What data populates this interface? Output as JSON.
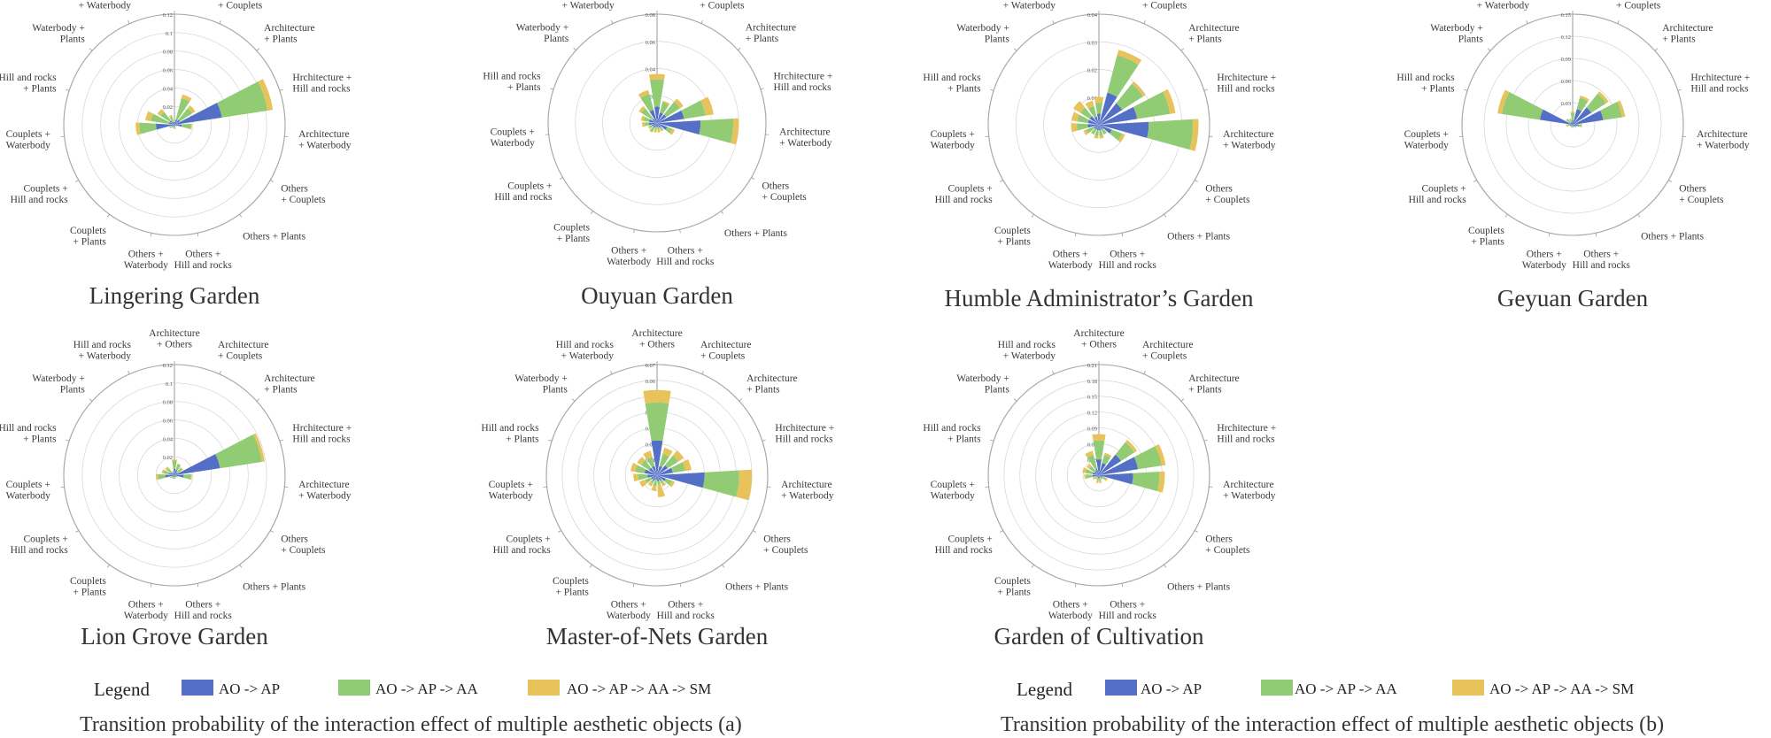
{
  "categories": [
    "Architecture + Others",
    "Architecture + Couplets",
    "Architecture + Plants",
    "Hrchitecture + Hill and rocks",
    "Architecture + Waterbody",
    "Others + Couplets",
    "Others + Plants",
    "Others + Hill and rocks",
    "Others + Waterbody",
    "Couplets + Plants",
    "Couplets + Hill and rocks",
    "Couplets + Waterbody",
    "Hill and rocks + Plants",
    "Waterbody + Plants",
    "Hill and rocks + Waterbody"
  ],
  "category_lines": [
    [
      "Architecture",
      "+ Others"
    ],
    [
      "Architecture",
      "+ Couplets"
    ],
    [
      "Architecture",
      "+ Plants"
    ],
    [
      "Hrchitecture +",
      "Hill and rocks"
    ],
    [
      "Architecture",
      "+ Waterbody"
    ],
    [
      "Others",
      "+ Couplets"
    ],
    [
      "Others + Plants"
    ],
    [
      "Others +",
      "Hill and rocks"
    ],
    [
      "Others +",
      "Waterbody"
    ],
    [
      "Couplets",
      "+ Plants"
    ],
    [
      "Couplets +",
      "Hill and rocks"
    ],
    [
      "Couplets +",
      "Waterbody"
    ],
    [
      "Hill and rocks",
      "+ Plants"
    ],
    [
      "Waterbody +",
      "Plants"
    ],
    [
      "Hill and rocks",
      "+ Waterbody"
    ]
  ],
  "colors": {
    "AO -> AP": "#5470c6",
    "AO -> AP -> AA": "#91cc75",
    "AO -> AP -> AA -> SM": "#e8c25a",
    "grid": "#d4d4d4",
    "axis": "#999999",
    "text": "#333333"
  },
  "chart_data": [
    {
      "type": "polar-bar-stacked",
      "title": "Lingering Garden",
      "rmax": 0.12,
      "ticks": [
        "0.02",
        "0.04",
        "0.06",
        "0.08",
        "0.1",
        "0.12"
      ],
      "series": [
        {
          "name": "AO -> AP",
          "values": [
            0.003,
            0.006,
            0.007,
            0.052,
            0.008,
            0.002,
            0.001,
            0.002,
            0.002,
            0.002,
            0.003,
            0.02,
            0.006,
            0.006,
            0.003
          ]
        },
        {
          "name": "AO -> AP -> AA",
          "values": [
            0.002,
            0.024,
            0.016,
            0.05,
            0.01,
            0.001,
            0.001,
            0.002,
            0.002,
            0.002,
            0.003,
            0.018,
            0.02,
            0.012,
            0.006
          ]
        },
        {
          "name": "AO -> AP -> AA -> SM",
          "values": [
            0.001,
            0.004,
            0.004,
            0.006,
            0.001,
            0,
            0,
            0.001,
            0,
            0,
            0,
            0.004,
            0.006,
            0.004,
            0.002
          ]
        }
      ]
    },
    {
      "type": "polar-bar-stacked",
      "title": "Ouyuan Garden",
      "rmax": 0.08,
      "ticks": [
        "0.02",
        "0.04",
        "0.06",
        "0.08"
      ],
      "series": [
        {
          "name": "AO -> AP",
          "values": [
            0.012,
            0.008,
            0.008,
            0.02,
            0.032,
            0.008,
            0.004,
            0.003,
            0.003,
            0.004,
            0.004,
            0.006,
            0.006,
            0.004,
            0.01
          ]
        },
        {
          "name": "AO -> AP -> AA",
          "values": [
            0.02,
            0.008,
            0.012,
            0.016,
            0.024,
            0.004,
            0.002,
            0.002,
            0.002,
            0.003,
            0.002,
            0.003,
            0.004,
            0.01,
            0.012
          ]
        },
        {
          "name": "AO -> AP -> AA -> SM",
          "values": [
            0.004,
            0.001,
            0.003,
            0.006,
            0.004,
            0.002,
            0.001,
            0.002,
            0.002,
            0.001,
            0.001,
            0.002,
            0.002,
            0.002,
            0.003
          ]
        }
      ]
    },
    {
      "type": "polar-bar-stacked",
      "title": "Humble Administrator’s Garden",
      "rmax": 0.04,
      "ticks": [
        "0.01",
        "0.02",
        "0.03",
        "0.04"
      ],
      "series": [
        {
          "name": "AO -> AP",
          "values": [
            0.004,
            0.012,
            0.01,
            0.014,
            0.018,
            0.005,
            0.002,
            0.002,
            0.002,
            0.002,
            0.002,
            0.004,
            0.004,
            0.004,
            0.003
          ]
        },
        {
          "name": "AO -> AP -> AA",
          "values": [
            0.004,
            0.014,
            0.009,
            0.012,
            0.016,
            0.004,
            0.002,
            0.002,
            0.002,
            0.002,
            0.003,
            0.004,
            0.004,
            0.004,
            0.004
          ]
        },
        {
          "name": "AO -> AP -> AA -> SM",
          "values": [
            0.002,
            0.002,
            0.001,
            0.002,
            0.002,
            0.001,
            0,
            0.001,
            0.001,
            0,
            0.001,
            0.002,
            0.002,
            0.003,
            0.002
          ]
        }
      ]
    },
    {
      "type": "polar-bar-stacked",
      "title": "Geyuan Garden",
      "rmax": 0.15,
      "ticks": [
        "0.03",
        "0.06",
        "0.09",
        "0.12",
        "0.15"
      ],
      "series": [
        {
          "name": "AO -> AP",
          "values": [
            0.006,
            0.022,
            0.03,
            0.042,
            0.008,
            0.004,
            0.002,
            0.002,
            0.002,
            0.002,
            0.002,
            0.004,
            0.045,
            0.004,
            0.004
          ]
        },
        {
          "name": "AO -> AP -> AA",
          "values": [
            0.01,
            0.016,
            0.024,
            0.026,
            0.004,
            0.002,
            0.002,
            0.002,
            0.002,
            0.002,
            0.002,
            0.004,
            0.052,
            0.006,
            0.004
          ]
        },
        {
          "name": "AO -> AP -> AA -> SM",
          "values": [
            0.002,
            0.003,
            0.004,
            0.004,
            0.001,
            0,
            0,
            0,
            0,
            0,
            0,
            0.001,
            0.006,
            0.001,
            0.001
          ]
        }
      ]
    },
    {
      "type": "polar-bar-stacked",
      "title": "Lion Grove Garden",
      "rmax": 0.12,
      "ticks": [
        "0.02",
        "0.04",
        "0.06",
        "0.08",
        "0.1",
        "0.12"
      ],
      "series": [
        {
          "name": "AO -> AP",
          "values": [
            0.007,
            0.006,
            0.004,
            0.05,
            0.01,
            0.002,
            0.002,
            0.002,
            0.002,
            0.002,
            0.003,
            0.01,
            0.006,
            0.004,
            0.002
          ]
        },
        {
          "name": "AO -> AP -> AA",
          "values": [
            0.009,
            0.006,
            0.006,
            0.046,
            0.008,
            0.002,
            0.001,
            0.002,
            0.002,
            0.002,
            0.002,
            0.008,
            0.006,
            0.006,
            0.002
          ]
        },
        {
          "name": "AO -> AP -> AA -> SM",
          "values": [
            0.001,
            0.001,
            0.001,
            0.003,
            0.001,
            0,
            0,
            0,
            0,
            0,
            0,
            0.002,
            0.002,
            0.002,
            0.001
          ]
        }
      ]
    },
    {
      "type": "polar-bar-stacked",
      "title": "Master-of-Nets Garden",
      "rmax": 0.07,
      "ticks": [
        "0.01",
        "0.02",
        "0.03",
        "0.04",
        "0.05",
        "0.06",
        "0.07"
      ],
      "series": [
        {
          "name": "AO -> AP",
          "values": [
            0.022,
            0.006,
            0.008,
            0.01,
            0.03,
            0.006,
            0.004,
            0.004,
            0.003,
            0.004,
            0.004,
            0.006,
            0.008,
            0.006,
            0.006
          ]
        },
        {
          "name": "AO -> AP -> AA",
          "values": [
            0.024,
            0.008,
            0.008,
            0.008,
            0.022,
            0.004,
            0.002,
            0.002,
            0.004,
            0.002,
            0.004,
            0.006,
            0.006,
            0.006,
            0.006
          ]
        },
        {
          "name": "AO -> AP -> AA -> SM",
          "values": [
            0.008,
            0.004,
            0.004,
            0.004,
            0.008,
            0.002,
            0.002,
            0.008,
            0.003,
            0.002,
            0.004,
            0.003,
            0.003,
            0.003,
            0.004
          ]
        }
      ]
    },
    {
      "type": "polar-bar-stacked",
      "title": "Garden of Cultivation",
      "rmax": 0.21,
      "ticks": [
        "0.03",
        "0.06",
        "0.09",
        "0.12",
        "0.15",
        "0.18",
        "0.21"
      ],
      "series": [
        {
          "name": "AO -> AP",
          "values": [
            0.03,
            0.024,
            0.05,
            0.075,
            0.065,
            0.008,
            0.004,
            0.006,
            0.006,
            0.004,
            0.005,
            0.012,
            0.012,
            0.01,
            0.012
          ]
        },
        {
          "name": "AO -> AP -> AA",
          "values": [
            0.036,
            0.016,
            0.03,
            0.045,
            0.05,
            0.006,
            0.004,
            0.005,
            0.005,
            0.004,
            0.005,
            0.012,
            0.014,
            0.012,
            0.028
          ]
        },
        {
          "name": "AO -> AP -> AA -> SM",
          "values": [
            0.012,
            0.004,
            0.006,
            0.008,
            0.01,
            0.004,
            0.002,
            0.004,
            0.004,
            0.002,
            0.003,
            0.004,
            0.006,
            0.006,
            0.008
          ]
        }
      ]
    }
  ],
  "legend": {
    "title": "Legend",
    "entries": [
      "AO -> AP",
      "AO -> AP -> AA",
      "AO -> AP -> AA -> SM"
    ]
  },
  "captions": {
    "a": "Transition probability of the interaction effect of multiple aesthetic objects (a)",
    "b": "Transition probability of the interaction effect of multiple aesthetic objects (b)"
  }
}
